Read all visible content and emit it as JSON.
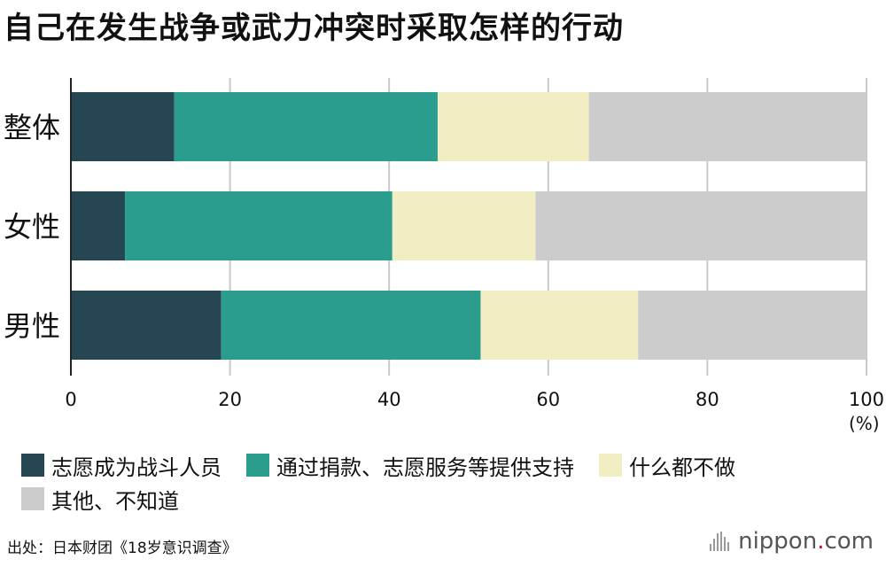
{
  "title": "自己在发生战争或武力冲突时采取怎样的行动",
  "chart_data": {
    "type": "bar",
    "orientation": "horizontal",
    "stacked": true,
    "categories": [
      "整体",
      "女性",
      "男性"
    ],
    "series": [
      {
        "name": "志愿成为战斗人员",
        "color": "#264653",
        "values": [
          13.0,
          6.8,
          18.9
        ]
      },
      {
        "name": "通过捐款、志愿服务等提供支持",
        "color": "#2a9d8f",
        "values": [
          33.1,
          33.6,
          32.6
        ]
      },
      {
        "name": "什么都不做",
        "color": "#f2eec4",
        "values": [
          19.0,
          18.0,
          19.8
        ]
      },
      {
        "name": "其他、不知道",
        "color": "#cccccc",
        "values": [
          34.9,
          41.6,
          28.7
        ]
      }
    ],
    "xlim": [
      0,
      100
    ],
    "xticks": [
      "0",
      "20",
      "40",
      "60",
      "80",
      "100"
    ],
    "xlabel": "(%)",
    "grid": true,
    "legend_position": "bottom"
  },
  "source": "出处：日本财团《18岁意识调查》",
  "brand": {
    "name": "nippon",
    "dot": ".",
    "suffix": "com"
  }
}
